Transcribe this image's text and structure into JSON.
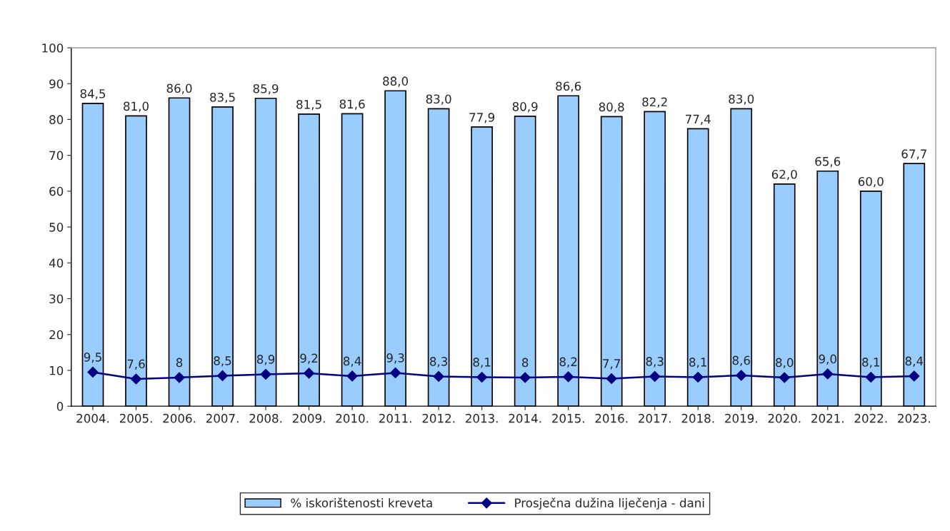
{
  "chart_data": {
    "type": "bar",
    "categories": [
      "2004.",
      "2005.",
      "2006.",
      "2007.",
      "2008.",
      "2009.",
      "2010.",
      "2011.",
      "2012.",
      "2013.",
      "2014.",
      "2015.",
      "2016.",
      "2017.",
      "2018.",
      "2019.",
      "2020.",
      "2021.",
      "2022.",
      "2023."
    ],
    "series": [
      {
        "name": "% iskorištenosti kreveta",
        "color": "#99ccff",
        "values": [
          84.5,
          81.0,
          86.0,
          83.5,
          85.9,
          81.5,
          81.6,
          88.0,
          83.0,
          77.9,
          80.9,
          86.6,
          80.8,
          82.2,
          77.4,
          83.0,
          62.0,
          65.6,
          60.0,
          67.7
        ],
        "value_labels": [
          "84,5",
          "81,0",
          "86,0",
          "83,5",
          "85,9",
          "81,5",
          "81,6",
          "88,0",
          "83,0",
          "77,9",
          "80,9",
          "86,6",
          "80,8",
          "82,2",
          "77,4",
          "83,0",
          "62,0",
          "65,6",
          "60,0",
          "67,7"
        ]
      },
      {
        "name": "Prosječna dužina liječenja - dani",
        "type": "line",
        "color": "#000080",
        "marker": "diamond",
        "values": [
          9.5,
          7.6,
          8,
          8.5,
          8.9,
          9.2,
          8.4,
          9.3,
          8.3,
          8.1,
          8,
          8.2,
          7.7,
          8.3,
          8.1,
          8.6,
          8.0,
          9.0,
          8.1,
          8.4
        ],
        "value_labels": [
          "9,5",
          "7,6",
          "8",
          "8,5",
          "8,9",
          "9,2",
          "8,4",
          "9,3",
          "8,3",
          "8,1",
          "8",
          "8,2",
          "7,7",
          "8,3",
          "8,1",
          "8,6",
          "8,0",
          "9,0",
          "8,1",
          "8,4"
        ]
      }
    ],
    "ylim": [
      0,
      100
    ],
    "yticks": [
      0,
      10,
      20,
      30,
      40,
      50,
      60,
      70,
      80,
      90,
      100
    ],
    "grid": false,
    "legend": "bottom"
  }
}
